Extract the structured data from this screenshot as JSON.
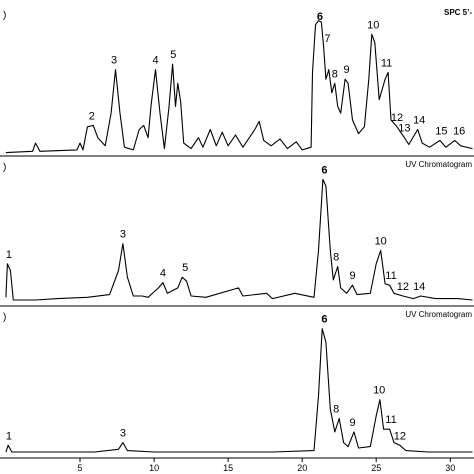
{
  "chart_data": [
    {
      "type": "line",
      "panel_label": ")",
      "preset_label": "SPC 5’-",
      "peaks": [
        {
          "label": "2",
          "x": 5.8
        },
        {
          "label": "3",
          "x": 7.3
        },
        {
          "label": "4",
          "x": 10.1
        },
        {
          "label": "5",
          "x": 11.3
        },
        {
          "label": "6",
          "x": 21.2
        },
        {
          "label": "7",
          "x": 21.7
        },
        {
          "label": "8",
          "x": 22.2
        },
        {
          "label": "9",
          "x": 23.0
        },
        {
          "label": "10",
          "x": 24.8
        },
        {
          "label": "11",
          "x": 25.7
        },
        {
          "label": "12",
          "x": 26.4
        },
        {
          "label": "13",
          "x": 26.9
        },
        {
          "label": "14",
          "x": 27.9
        },
        {
          "label": "15",
          "x": 29.4
        },
        {
          "label": "16",
          "x": 30.6
        }
      ],
      "trace": [
        [
          0,
          0.01
        ],
        [
          1.8,
          0.02
        ],
        [
          2.0,
          0.08
        ],
        [
          2.3,
          0.02
        ],
        [
          4.8,
          0.03
        ],
        [
          5.0,
          0.08
        ],
        [
          5.2,
          0.03
        ],
        [
          5.5,
          0.2
        ],
        [
          5.9,
          0.21
        ],
        [
          6.2,
          0.12
        ],
        [
          6.7,
          0.06
        ],
        [
          7.1,
          0.3
        ],
        [
          7.4,
          0.62
        ],
        [
          7.7,
          0.3
        ],
        [
          8.0,
          0.05
        ],
        [
          8.6,
          0.03
        ],
        [
          9.0,
          0.18
        ],
        [
          9.3,
          0.21
        ],
        [
          9.6,
          0.12
        ],
        [
          9.8,
          0.36
        ],
        [
          10.1,
          0.62
        ],
        [
          10.4,
          0.3
        ],
        [
          10.7,
          0.04
        ],
        [
          11.0,
          0.34
        ],
        [
          11.25,
          0.66
        ],
        [
          11.45,
          0.35
        ],
        [
          11.6,
          0.52
        ],
        [
          11.8,
          0.38
        ],
        [
          12.0,
          0.08
        ],
        [
          12.5,
          0.04
        ],
        [
          13.0,
          0.12
        ],
        [
          13.3,
          0.05
        ],
        [
          13.8,
          0.18
        ],
        [
          14.2,
          0.06
        ],
        [
          14.6,
          0.16
        ],
        [
          15.0,
          0.06
        ],
        [
          15.5,
          0.14
        ],
        [
          16.0,
          0.05
        ],
        [
          16.8,
          0.18
        ],
        [
          17.1,
          0.24
        ],
        [
          17.4,
          0.1
        ],
        [
          17.9,
          0.06
        ],
        [
          18.5,
          0.11
        ],
        [
          19.0,
          0.04
        ],
        [
          19.6,
          0.09
        ],
        [
          20.0,
          0.03
        ],
        [
          20.6,
          0.05
        ],
        [
          20.7,
          0.6
        ],
        [
          20.9,
          0.95
        ],
        [
          21.1,
          0.98
        ],
        [
          21.3,
          0.97
        ],
        [
          21.45,
          0.78
        ],
        [
          21.6,
          0.55
        ],
        [
          21.8,
          0.62
        ],
        [
          22.0,
          0.45
        ],
        [
          22.2,
          0.52
        ],
        [
          22.4,
          0.35
        ],
        [
          22.6,
          0.3
        ],
        [
          22.9,
          0.55
        ],
        [
          23.1,
          0.52
        ],
        [
          23.4,
          0.25
        ],
        [
          23.8,
          0.15
        ],
        [
          24.2,
          0.2
        ],
        [
          24.5,
          0.55
        ],
        [
          24.7,
          0.88
        ],
        [
          24.9,
          0.82
        ],
        [
          25.2,
          0.4
        ],
        [
          25.6,
          0.55
        ],
        [
          25.8,
          0.6
        ],
        [
          26.0,
          0.25
        ],
        [
          26.4,
          0.2
        ],
        [
          26.9,
          0.12
        ],
        [
          27.2,
          0.07
        ],
        [
          27.8,
          0.18
        ],
        [
          28.1,
          0.08
        ],
        [
          28.6,
          0.05
        ],
        [
          29.3,
          0.1
        ],
        [
          29.7,
          0.05
        ],
        [
          30.3,
          0.1
        ],
        [
          30.7,
          0.06
        ],
        [
          31.5,
          0.04
        ]
      ]
    },
    {
      "type": "line",
      "panel_label": ")",
      "preset_label": "UV Chromatogram",
      "peaks": [
        {
          "label": "1",
          "x": 0.2
        },
        {
          "label": "3",
          "x": 7.9
        },
        {
          "label": "4",
          "x": 10.6
        },
        {
          "label": "5",
          "x": 12.1
        },
        {
          "label": "6",
          "x": 21.5
        },
        {
          "label": "8",
          "x": 22.3
        },
        {
          "label": "9",
          "x": 23.4
        },
        {
          "label": "10",
          "x": 25.3
        },
        {
          "label": "11",
          "x": 26.0
        },
        {
          "label": "12",
          "x": 26.8
        },
        {
          "label": "14",
          "x": 27.9
        }
      ],
      "trace": [
        [
          0,
          0.05
        ],
        [
          0.1,
          0.3
        ],
        [
          0.3,
          0.25
        ],
        [
          0.5,
          0.03
        ],
        [
          2.0,
          0.03
        ],
        [
          3.5,
          0.04
        ],
        [
          5.5,
          0.05
        ],
        [
          7.0,
          0.07
        ],
        [
          7.6,
          0.25
        ],
        [
          7.9,
          0.45
        ],
        [
          8.2,
          0.2
        ],
        [
          8.6,
          0.06
        ],
        [
          9.2,
          0.06
        ],
        [
          9.6,
          0.05
        ],
        [
          10.3,
          0.12
        ],
        [
          10.6,
          0.16
        ],
        [
          10.9,
          0.08
        ],
        [
          11.6,
          0.12
        ],
        [
          11.9,
          0.2
        ],
        [
          12.2,
          0.17
        ],
        [
          12.5,
          0.06
        ],
        [
          13.5,
          0.05
        ],
        [
          15.7,
          0.12
        ],
        [
          16.0,
          0.06
        ],
        [
          17.6,
          0.08
        ],
        [
          18.0,
          0.04
        ],
        [
          19.5,
          0.08
        ],
        [
          20.8,
          0.05
        ],
        [
          21.1,
          0.4
        ],
        [
          21.4,
          0.93
        ],
        [
          21.6,
          0.88
        ],
        [
          21.9,
          0.4
        ],
        [
          22.1,
          0.18
        ],
        [
          22.4,
          0.28
        ],
        [
          22.6,
          0.12
        ],
        [
          23.0,
          0.08
        ],
        [
          23.4,
          0.14
        ],
        [
          23.7,
          0.07
        ],
        [
          24.6,
          0.08
        ],
        [
          25.0,
          0.3
        ],
        [
          25.3,
          0.4
        ],
        [
          25.6,
          0.15
        ],
        [
          25.9,
          0.14
        ],
        [
          26.2,
          0.08
        ],
        [
          26.8,
          0.06
        ],
        [
          27.5,
          0.04
        ],
        [
          28.0,
          0.06
        ],
        [
          29.0,
          0.04
        ],
        [
          30.5,
          0.04
        ],
        [
          31.5,
          0.03
        ]
      ]
    },
    {
      "type": "line",
      "panel_label": ")",
      "preset_label": "UV Chromatogram",
      "peaks": [
        {
          "label": "1",
          "x": 0.2
        },
        {
          "label": "3",
          "x": 7.9
        },
        {
          "label": "6",
          "x": 21.5
        },
        {
          "label": "8",
          "x": 22.3
        },
        {
          "label": "9",
          "x": 23.4
        },
        {
          "label": "10",
          "x": 25.2
        },
        {
          "label": "11",
          "x": 26.0
        },
        {
          "label": "12",
          "x": 26.6
        }
      ],
      "trace": [
        [
          0,
          0.03
        ],
        [
          0.15,
          0.08
        ],
        [
          0.4,
          0.03
        ],
        [
          3.0,
          0.03
        ],
        [
          6.0,
          0.03
        ],
        [
          7.6,
          0.05
        ],
        [
          7.9,
          0.1
        ],
        [
          8.2,
          0.04
        ],
        [
          10.0,
          0.03
        ],
        [
          14.0,
          0.03
        ],
        [
          18.0,
          0.03
        ],
        [
          20.8,
          0.04
        ],
        [
          21.1,
          0.45
        ],
        [
          21.35,
          0.95
        ],
        [
          21.6,
          0.85
        ],
        [
          21.9,
          0.35
        ],
        [
          22.2,
          0.18
        ],
        [
          22.5,
          0.28
        ],
        [
          22.8,
          0.1
        ],
        [
          23.1,
          0.07
        ],
        [
          23.5,
          0.18
        ],
        [
          23.8,
          0.06
        ],
        [
          24.6,
          0.07
        ],
        [
          25.0,
          0.3
        ],
        [
          25.25,
          0.42
        ],
        [
          25.5,
          0.2
        ],
        [
          25.9,
          0.2
        ],
        [
          26.2,
          0.1
        ],
        [
          26.6,
          0.08
        ],
        [
          27.0,
          0.04
        ],
        [
          28.5,
          0.03
        ],
        [
          30.0,
          0.03
        ],
        [
          31.5,
          0.03
        ]
      ]
    }
  ],
  "x_axis": {
    "ticks": [
      5,
      10,
      15,
      20,
      25,
      30
    ],
    "range": [
      -0.4,
      31.6
    ]
  }
}
